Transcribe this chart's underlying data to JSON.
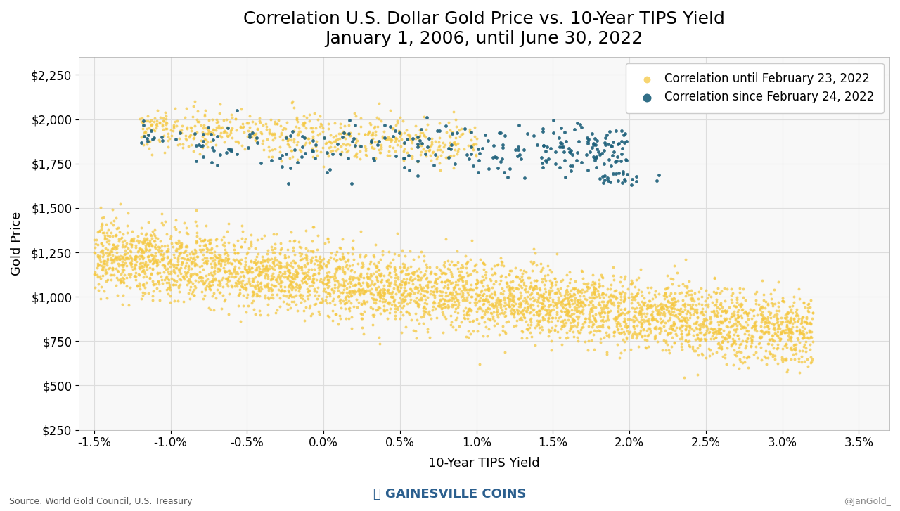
{
  "title_line1": "Correlation U.S. Dollar Gold Price vs. 10-Year TIPS Yield",
  "title_line2": "January 1, 2006, until June 30, 2022",
  "xlabel": "10-Year TIPS Yield",
  "ylabel": "Gold Price",
  "xlim": [
    -0.016,
    0.037
  ],
  "ylim": [
    250,
    2350
  ],
  "xticks": [
    -0.015,
    -0.01,
    -0.005,
    0.0,
    0.005,
    0.01,
    0.015,
    0.02,
    0.025,
    0.03,
    0.035
  ],
  "yticks": [
    250,
    500,
    750,
    1000,
    1250,
    1500,
    1750,
    2000,
    2250
  ],
  "color_gold": "#F5C842",
  "color_teal": "#1C5F7A",
  "legend_label1": "Correlation until February 23, 2022",
  "legend_label2": "Correlation since February 24, 2022",
  "source_text": "Source: World Gold Council, U.S. Treasury",
  "watermark_text": "@JanGold_",
  "bg_color": "#F8F8F8",
  "grid_color": "#DDDDDD",
  "title_fontsize": 18,
  "label_fontsize": 13,
  "tick_fontsize": 12,
  "legend_fontsize": 12
}
